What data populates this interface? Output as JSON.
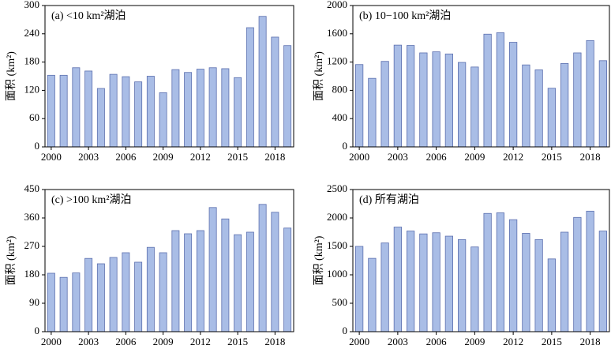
{
  "chart_data": [
    {
      "type": "bar",
      "title": "(a) <10 km²湖泊",
      "ylabel": "面积 (km²)",
      "color": "#a9bde6",
      "edgecolor": "#5b6fae",
      "x": [
        2000,
        2001,
        2002,
        2003,
        2004,
        2005,
        2006,
        2007,
        2008,
        2009,
        2010,
        2011,
        2012,
        2013,
        2014,
        2015,
        2016,
        2017,
        2018,
        2019
      ],
      "values": [
        152,
        152,
        168,
        161,
        124,
        154,
        149,
        138,
        150,
        115,
        164,
        158,
        165,
        168,
        166,
        147,
        253,
        277,
        233,
        215
      ],
      "xlim": [
        1999.5,
        2019.5
      ],
      "xticks": [
        2000,
        2003,
        2006,
        2009,
        2012,
        2015,
        2018
      ],
      "ylim": [
        0,
        300
      ],
      "yticks": [
        0,
        60,
        120,
        180,
        240,
        300
      ]
    },
    {
      "type": "bar",
      "title": "(b) 10−100 km²湖泊",
      "ylabel": "面积 (km²)",
      "color": "#a9bde6",
      "edgecolor": "#5b6fae",
      "x": [
        2000,
        2001,
        2002,
        2003,
        2004,
        2005,
        2006,
        2007,
        2008,
        2009,
        2010,
        2011,
        2012,
        2013,
        2014,
        2015,
        2016,
        2017,
        2018,
        2019
      ],
      "values": [
        1165,
        970,
        1210,
        1440,
        1435,
        1330,
        1345,
        1315,
        1195,
        1130,
        1595,
        1615,
        1480,
        1160,
        1090,
        830,
        1180,
        1330,
        1505,
        1220
      ],
      "xlim": [
        1999.5,
        2019.5
      ],
      "xticks": [
        2000,
        2003,
        2006,
        2009,
        2012,
        2015,
        2018
      ],
      "ylim": [
        0,
        2000
      ],
      "yticks": [
        0,
        400,
        800,
        1200,
        1600,
        2000
      ]
    },
    {
      "type": "bar",
      "title": "(c) >100 km²湖泊",
      "ylabel": "面积 (km²)",
      "color": "#a9bde6",
      "edgecolor": "#5b6fae",
      "x": [
        2000,
        2001,
        2002,
        2003,
        2004,
        2005,
        2006,
        2007,
        2008,
        2009,
        2010,
        2011,
        2012,
        2013,
        2014,
        2015,
        2016,
        2017,
        2018,
        2019
      ],
      "values": [
        185,
        172,
        186,
        232,
        215,
        235,
        250,
        220,
        267,
        250,
        320,
        310,
        320,
        393,
        357,
        307,
        315,
        403,
        378,
        328
      ],
      "xlim": [
        1999.5,
        2019.5
      ],
      "xticks": [
        2000,
        2003,
        2006,
        2009,
        2012,
        2015,
        2018
      ],
      "ylim": [
        0,
        450
      ],
      "yticks": [
        0,
        90,
        180,
        270,
        360,
        450
      ]
    },
    {
      "type": "bar",
      "title": "(d) 所有湖泊",
      "ylabel": "面积 (km²)",
      "color": "#a9bde6",
      "edgecolor": "#5b6fae",
      "x": [
        2000,
        2001,
        2002,
        2003,
        2004,
        2005,
        2006,
        2007,
        2008,
        2009,
        2010,
        2011,
        2012,
        2013,
        2014,
        2015,
        2016,
        2017,
        2018,
        2019
      ],
      "values": [
        1500,
        1290,
        1560,
        1840,
        1770,
        1720,
        1740,
        1680,
        1620,
        1490,
        2080,
        2090,
        1970,
        1730,
        1620,
        1280,
        1750,
        2010,
        2120,
        1770
      ],
      "xlim": [
        1999.5,
        2019.5
      ],
      "xticks": [
        2000,
        2003,
        2006,
        2009,
        2012,
        2015,
        2018
      ],
      "ylim": [
        0,
        2500
      ],
      "yticks": [
        0,
        500,
        1000,
        1500,
        2000,
        2500
      ]
    }
  ]
}
